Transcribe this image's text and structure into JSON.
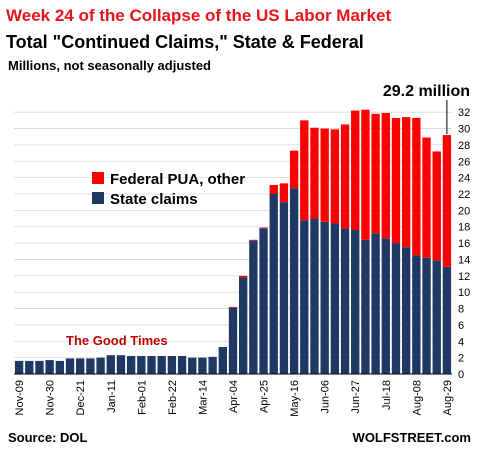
{
  "chart_data": {
    "type": "bar",
    "stacked": true,
    "title": "Week 24 of the Collapse of the US Labor Market",
    "subtitle": "Total \"Continued Claims,\" State & Federal",
    "units": "Millions, not seasonally adjusted",
    "source": "Source: DOL",
    "brand": "WOLFSTREET.com",
    "callout": "29.2 million",
    "annotation": "The Good Times",
    "ylim": [
      0,
      33
    ],
    "yticks": [
      0,
      2,
      4,
      6,
      8,
      10,
      12,
      14,
      16,
      18,
      20,
      22,
      24,
      26,
      28,
      30,
      32
    ],
    "x_tick_labels": [
      "Nov-09",
      "Nov-30",
      "Dec-21",
      "Jan-11",
      "Feb-01",
      "Feb-22",
      "Mar-14",
      "Apr-04",
      "Apr-25",
      "May-16",
      "Jun-06",
      "Jun-27",
      "Jul-18",
      "Aug-08",
      "Aug-29"
    ],
    "legend_position": "center-left",
    "colors": {
      "state": "#1f3864",
      "federal": "#ff0000"
    },
    "series": [
      {
        "name": "State claims",
        "values": [
          1.6,
          1.6,
          1.6,
          1.7,
          1.6,
          1.9,
          1.9,
          1.9,
          2.0,
          2.3,
          2.3,
          2.2,
          2.2,
          2.2,
          2.2,
          2.2,
          2.2,
          2.0,
          2.0,
          2.1,
          3.3,
          8.1,
          11.8,
          16.3,
          17.8,
          22.0,
          21.0,
          22.7,
          18.8,
          19.0,
          18.6,
          18.4,
          17.8,
          17.6,
          16.4,
          17.2,
          16.6,
          16.0,
          15.5,
          14.5,
          14.2,
          13.9,
          13.1
        ]
      },
      {
        "name": "Federal PUA, other",
        "values": [
          0,
          0,
          0,
          0,
          0,
          0,
          0,
          0,
          0,
          0,
          0,
          0,
          0,
          0,
          0,
          0,
          0,
          0,
          0,
          0,
          0,
          0.1,
          0.2,
          0.1,
          0.1,
          1.1,
          2.3,
          4.6,
          12.2,
          11.1,
          11.4,
          11.5,
          12.7,
          14.6,
          15.9,
          14.6,
          15.3,
          15.3,
          15.9,
          16.8,
          14.7,
          13.3,
          16.1
        ]
      }
    ]
  }
}
